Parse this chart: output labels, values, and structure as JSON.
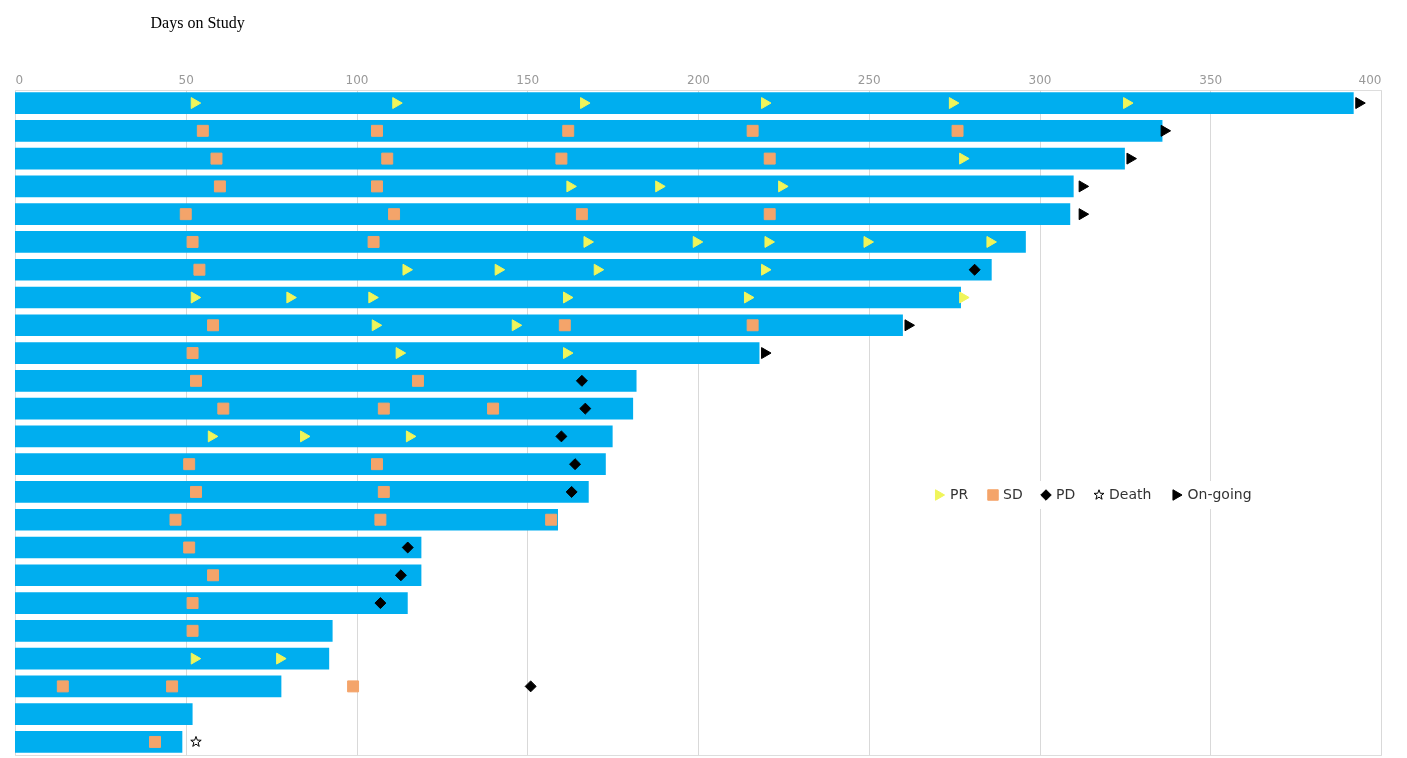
{
  "chart_data": {
    "type": "bar",
    "orientation": "horizontal",
    "xlabel": "Days on Study",
    "categories": [
      null,
      null,
      null,
      null,
      null,
      null,
      null,
      null,
      null,
      null,
      null,
      null,
      null,
      null,
      null,
      null,
      null,
      null,
      null,
      null,
      null,
      null,
      null,
      null
    ],
    "xlim": [
      0,
      400
    ],
    "xticks": [
      0,
      50,
      100,
      150,
      200,
      250,
      300,
      350,
      400
    ],
    "grid": "x",
    "legend": "right",
    "series": [
      {
        "color": "#00aeef",
        "values": [
          392,
          336,
          325,
          310,
          309,
          296,
          286,
          277,
          260,
          218,
          182,
          181,
          175,
          173,
          168,
          159,
          119,
          119,
          115,
          93,
          92,
          78,
          52,
          49
        ]
      },
      {
        "type": "scatter",
        "name": "PR",
        "marker": "triangle",
        "color": "#f0f55a",
        "values": [
          53,
          null,
          278,
          163,
          null,
          168,
          115,
          53,
          106,
          113,
          null,
          null,
          58,
          null,
          null,
          null,
          null,
          null,
          null,
          null,
          53,
          null,
          null,
          null
        ]
      },
      {
        "type": "scatter",
        "marker": "triangle",
        "color": "#f0f55a",
        "values": [
          112,
          null,
          null,
          189,
          null,
          200,
          142,
          81,
          147,
          162,
          null,
          null,
          85,
          null,
          null,
          null,
          null,
          null,
          null,
          null,
          78,
          null,
          null,
          null
        ]
      },
      {
        "type": "scatter",
        "marker": "triangle",
        "color": "#f0f55a",
        "values": [
          167,
          null,
          null,
          225,
          null,
          221,
          171,
          105,
          null,
          null,
          null,
          null,
          116,
          null,
          null,
          null,
          null,
          null,
          null,
          null,
          null,
          null,
          null,
          null
        ]
      },
      {
        "type": "scatter",
        "marker": "triangle",
        "color": "#f0f55a",
        "values": [
          220,
          null,
          null,
          null,
          null,
          250,
          220,
          162,
          null,
          null,
          null,
          null,
          null,
          null,
          null,
          null,
          null,
          null,
          null,
          null,
          null,
          null,
          null,
          null
        ]
      },
      {
        "type": "scatter",
        "marker": "triangle",
        "color": "#f0f55a",
        "values": [
          275,
          null,
          null,
          null,
          null,
          286,
          null,
          215,
          null,
          null,
          null,
          null,
          null,
          null,
          null,
          null,
          null,
          null,
          null,
          null,
          null,
          null,
          null,
          null
        ]
      },
      {
        "type": "scatter",
        "marker": "triangle",
        "color": "#f0f55a",
        "values": [
          326,
          null,
          null,
          null,
          null,
          null,
          null,
          278,
          null,
          null,
          null,
          null,
          null,
          null,
          null,
          null,
          null,
          null,
          null,
          null,
          null,
          null,
          null,
          null
        ]
      },
      {
        "type": "scatter",
        "name": "SD",
        "marker": "square",
        "color": "#f4a46a",
        "values": [
          null,
          55,
          59,
          60,
          50,
          52,
          54,
          null,
          58,
          52,
          53,
          61,
          null,
          51,
          53,
          47,
          51,
          58,
          52,
          52,
          null,
          14,
          null,
          41
        ]
      },
      {
        "type": "scatter",
        "marker": "square",
        "color": "#f4a46a",
        "values": [
          null,
          106,
          109,
          106,
          111,
          105,
          null,
          null,
          161,
          null,
          118,
          108,
          null,
          106,
          108,
          107,
          null,
          null,
          null,
          null,
          null,
          46,
          null,
          null
        ]
      },
      {
        "type": "scatter",
        "marker": "square",
        "color": "#f4a46a",
        "values": [
          null,
          162,
          160,
          null,
          166,
          null,
          null,
          null,
          216,
          null,
          null,
          140,
          null,
          null,
          null,
          157,
          null,
          null,
          null,
          null,
          null,
          99,
          null,
          null
        ]
      },
      {
        "type": "scatter",
        "marker": "square",
        "color": "#f4a46a",
        "values": [
          null,
          216,
          221,
          null,
          221,
          null,
          null,
          null,
          null,
          null,
          null,
          null,
          null,
          null,
          null,
          null,
          null,
          null,
          null,
          null,
          null,
          null,
          null,
          null
        ]
      },
      {
        "type": "scatter",
        "marker": "square",
        "color": "#f4a46a",
        "values": [
          null,
          276,
          null,
          null,
          null,
          null,
          null,
          null,
          null,
          null,
          null,
          null,
          null,
          null,
          null,
          null,
          null,
          null,
          null,
          null,
          null,
          null,
          null,
          null
        ]
      },
      {
        "type": "scatter",
        "name": "PD",
        "marker": "diamond",
        "color": "#000000",
        "values": [
          null,
          null,
          null,
          null,
          null,
          null,
          281,
          null,
          null,
          null,
          166,
          167,
          160,
          164,
          163,
          null,
          115,
          113,
          107,
          null,
          null,
          151,
          null,
          null
        ]
      },
      {
        "type": "scatter",
        "name": "Death",
        "marker": "star",
        "color": "#000000",
        "values": [
          null,
          null,
          null,
          null,
          null,
          null,
          null,
          null,
          null,
          null,
          null,
          null,
          null,
          null,
          null,
          null,
          null,
          null,
          null,
          null,
          null,
          null,
          null,
          53
        ]
      },
      {
        "type": "scatter",
        "name": "On-going",
        "marker": "triangle",
        "color": "#000000",
        "values": [
          394,
          337,
          327,
          313,
          313,
          null,
          null,
          null,
          262,
          220,
          null,
          null,
          null,
          null,
          null,
          null,
          null,
          null,
          null,
          null,
          null,
          null,
          null,
          null
        ]
      }
    ]
  }
}
